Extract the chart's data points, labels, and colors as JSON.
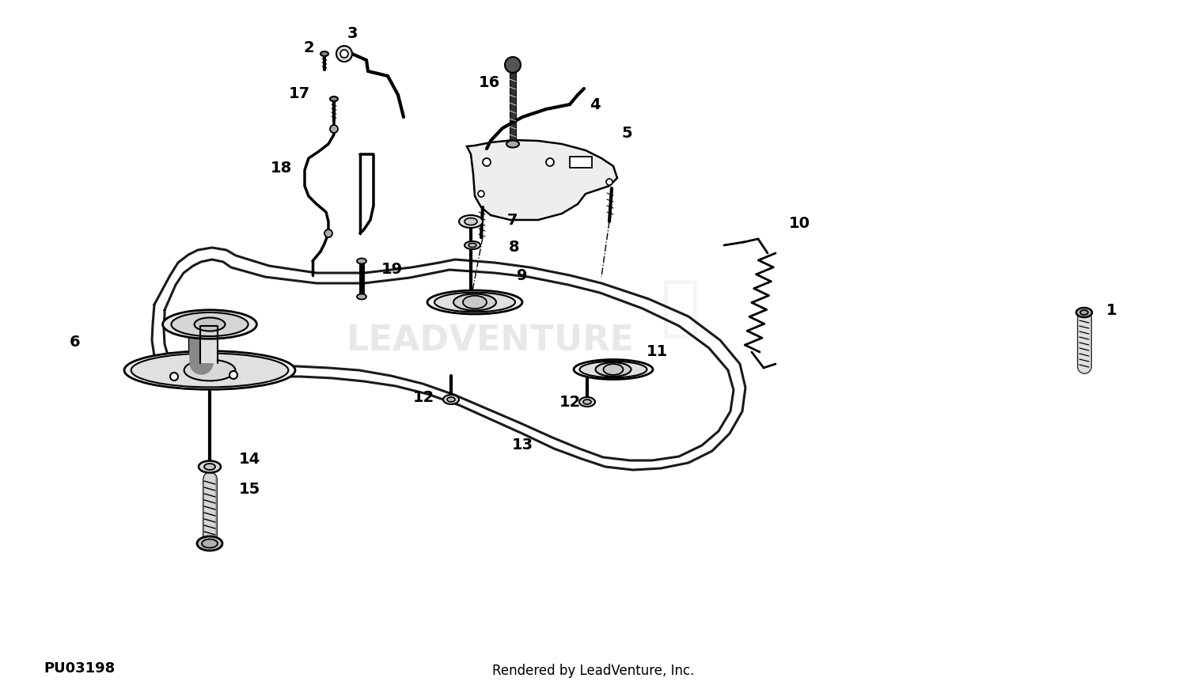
{
  "background_color": "#ffffff",
  "diagram_color": "#000000",
  "part_number_text": "PU03198",
  "footer_text": "Rendered by LeadVenture, Inc.",
  "watermark_text": "LEADVENTURE",
  "fig_width": 15.0,
  "fig_height": 8.76,
  "dpi": 100
}
